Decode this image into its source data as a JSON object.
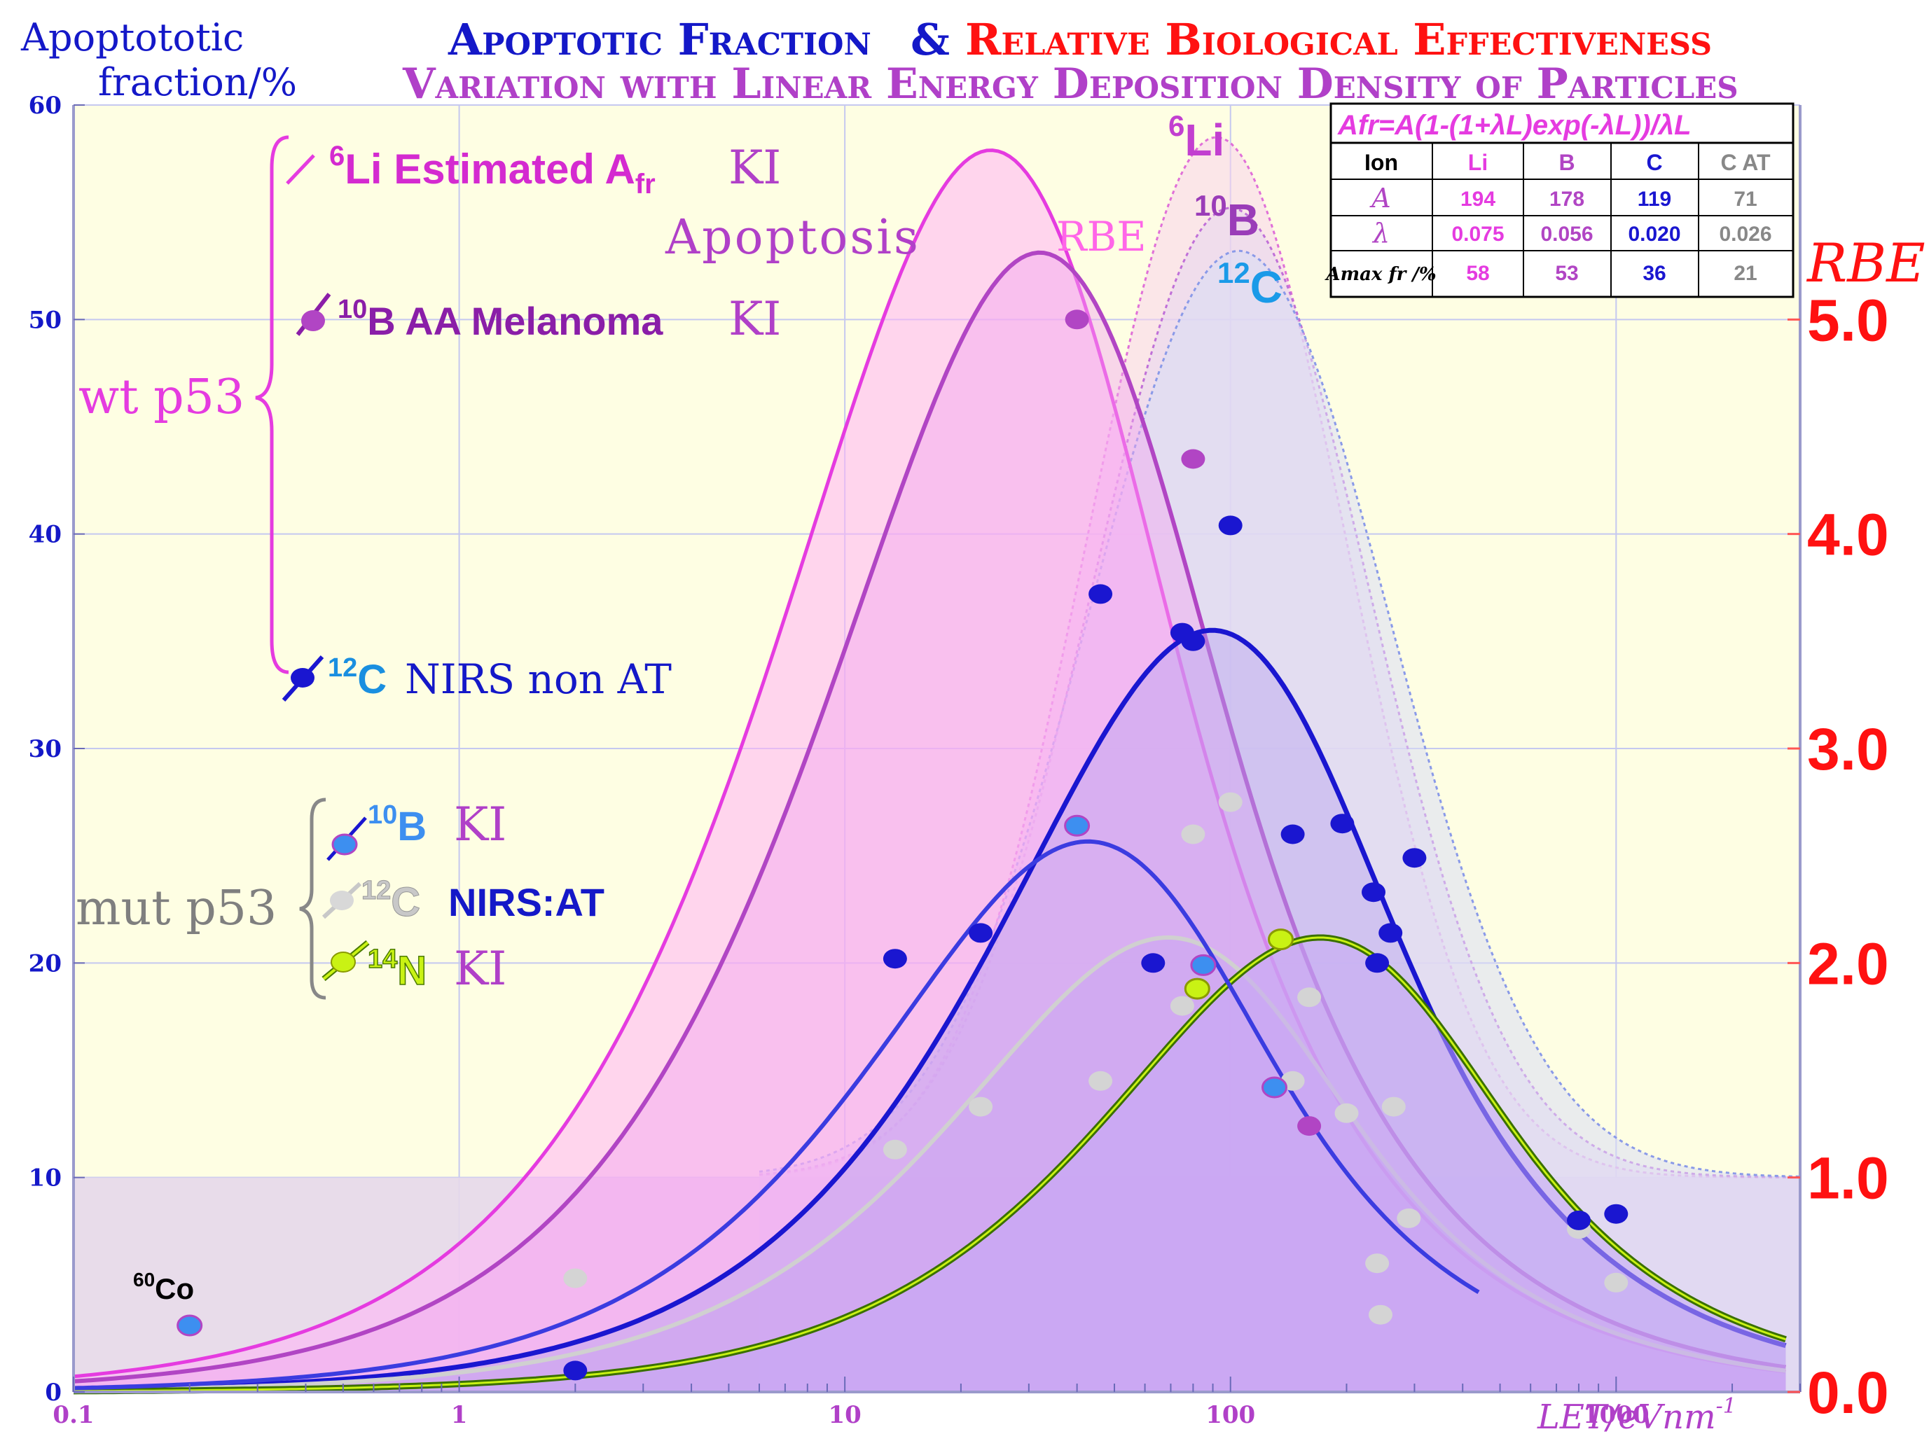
{
  "colors": {
    "bg": "#fefee3",
    "li": "#e53be0",
    "b": "#b145c4",
    "c": "#1a16d0",
    "cat": "#c8c8c8",
    "n": "#c9f214",
    "red": "#ff1111",
    "blue_title": "#1418c8",
    "violet": "#b040c8"
  },
  "titles": {
    "y_axis": "Apoptototic",
    "y_axis2": "fraction/%",
    "line1a": "Apoptotic Fraction",
    "line1amp": "&",
    "line1b": "Relative Biological Effectiveness",
    "line2": "Variation with Linear Energy Deposition Density of Particles",
    "rbe": "RBE",
    "x_axis": "LET/eVnm"
  },
  "labels": {
    "li_est_sup": "6",
    "li_est": "Li Estimated A",
    "li_est_sub": "fr",
    "li_est_ki": "KI",
    "b_aa_sup": "10",
    "b_aa": "B AA Melanoma",
    "b_aa_ki": "KI",
    "c_nirs_sup": "12",
    "c_nirs_el": "C",
    "c_nirs": "NIRS non AT",
    "wt": "wt p53",
    "mut": "mut p53",
    "mb_sup": "10",
    "mb_el": "B",
    "mb_ki": "KI",
    "mc_sup": "12",
    "mc_el": "C",
    "mc_nirs": "NIRS:AT",
    "mn_sup": "14",
    "mn_el": "N",
    "mn_ki": "KI",
    "apoptosis": "Apoptosis",
    "rbe_curve": "RBE",
    "pk_li_sup": "6",
    "pk_li": "Li",
    "pk_b_sup": "10",
    "pk_b": "B",
    "pk_c_sup": "12",
    "pk_c": "C",
    "co_sup": "60",
    "co": "Co",
    "x_sup": "-1"
  },
  "table": {
    "formula": "Afr=A(1-(1+λL)exp(-λL))/λL",
    "header": [
      "Ion",
      "Li",
      "B",
      "C",
      "C AT"
    ],
    "rows": [
      {
        "label": "A",
        "values": [
          "194",
          "178",
          "119",
          "71"
        ]
      },
      {
        "label": "λ",
        "values": [
          "0.075",
          "0.056",
          "0.020",
          "0.026"
        ]
      },
      {
        "label": "Amax fr /%",
        "values": [
          "58",
          "53",
          "36",
          "21"
        ]
      }
    ]
  },
  "chart_data": {
    "type": "line",
    "x_scale": "log",
    "xlim": [
      0.1,
      3000
    ],
    "ylim": [
      0,
      60
    ],
    "y2lim": [
      0,
      6
    ],
    "x_ticks": [
      "0.1",
      "1",
      "10",
      "100",
      "1000"
    ],
    "y_ticks": [
      "0",
      "10",
      "20",
      "30",
      "40",
      "50",
      "60"
    ],
    "y2_ticks": [
      "0.0",
      "1.0",
      "2.0",
      "3.0",
      "4.0",
      "5.0"
    ],
    "apoptosis_curves": [
      {
        "ion": "Li",
        "A": 194,
        "lambda": 0.075
      },
      {
        "ion": "B",
        "A": 178,
        "lambda": 0.056
      },
      {
        "ion": "C",
        "A": 119,
        "lambda": 0.02
      },
      {
        "ion": "C AT",
        "A": 71,
        "lambda": 0.026
      },
      {
        "ion": "N",
        "A": 71,
        "lambda": 0.0105
      },
      {
        "ion": "B mut",
        "A": 86,
        "lambda": 0.042
      }
    ],
    "rbe_curves": [
      {
        "ion": "Li",
        "peak_L": 92,
        "peak_rbe": 5.85
      },
      {
        "ion": "B",
        "peak_L": 100,
        "peak_rbe": 5.52
      },
      {
        "ion": "C",
        "peak_L": 105,
        "peak_rbe": 5.32
      }
    ],
    "points": {
      "c_nirs": [
        [
          2,
          1
        ],
        [
          13.5,
          20.2
        ],
        [
          22.5,
          21.4
        ],
        [
          46,
          37.2
        ],
        [
          63,
          20
        ],
        [
          75,
          35.4
        ],
        [
          80,
          35
        ],
        [
          100,
          40.4
        ],
        [
          145,
          26
        ],
        [
          195,
          26.5
        ],
        [
          235,
          23.3
        ],
        [
          240,
          20
        ],
        [
          260,
          21.4
        ],
        [
          300,
          24.9
        ],
        [
          800,
          8
        ],
        [
          1000,
          8.3
        ]
      ],
      "c_at": [
        [
          2,
          5.3
        ],
        [
          13.5,
          11.3
        ],
        [
          22.5,
          13.3
        ],
        [
          46,
          14.5
        ],
        [
          75,
          18
        ],
        [
          80,
          26
        ],
        [
          100,
          27.5
        ],
        [
          145,
          14.5
        ],
        [
          160,
          18.4
        ],
        [
          200,
          13
        ],
        [
          240,
          6
        ],
        [
          245,
          3.6
        ],
        [
          265,
          13.3
        ],
        [
          290,
          8.1
        ],
        [
          800,
          7.6
        ],
        [
          1000,
          5.1
        ]
      ],
      "b_ki": [
        [
          40,
          26.4
        ],
        [
          85,
          19.9
        ],
        [
          130,
          14.2
        ]
      ],
      "b_aa": [
        [
          40,
          50
        ],
        [
          80,
          43.5
        ],
        [
          160,
          12.4
        ]
      ],
      "n_ki": [
        [
          82,
          18.8
        ],
        [
          135,
          21.1
        ]
      ],
      "co60": [
        [
          0.2,
          3.1
        ]
      ]
    }
  }
}
